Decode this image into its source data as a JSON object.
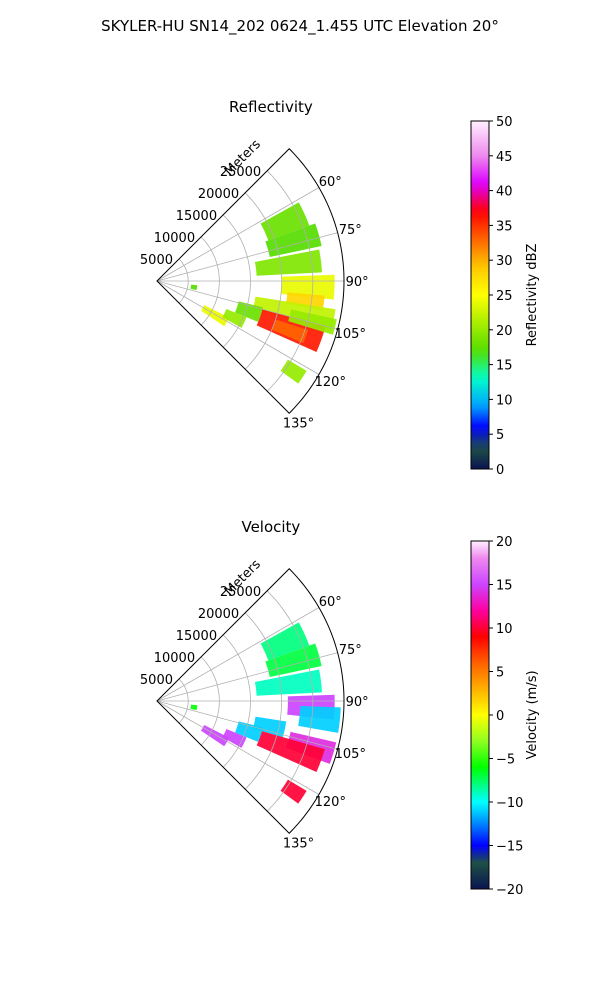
{
  "page_title": "SKYLER-HU  SN14_202  0624_1.455 UTC Elevation 20°",
  "colors": {
    "grid": "#b0b0b0",
    "frame": "#000000"
  },
  "chart_data": [
    {
      "type": "heatmap",
      "subtype": "polar-sector",
      "title": "Reflectivity",
      "range_label": "Meters",
      "r_max": 30000,
      "r_ticks": [
        5000,
        10000,
        15000,
        20000,
        25000
      ],
      "r_tick_labels": [
        "5000",
        "10000",
        "15000",
        "20000",
        "25000"
      ],
      "azimuth_range": [
        45,
        135
      ],
      "azimuth_ticks": [
        60,
        75,
        90,
        105,
        120,
        135
      ],
      "azimuth_tick_labels": [
        "60°",
        "75°",
        "90°",
        "105°",
        "120°",
        "135°"
      ],
      "grid": true,
      "colorbar": {
        "label": "Reflectivity dBZ",
        "vmin": 0,
        "vmax": 50,
        "ticks": [
          0,
          5,
          10,
          15,
          20,
          25,
          30,
          35,
          40,
          45,
          50
        ],
        "tick_labels": [
          "0",
          "5",
          "10",
          "15",
          "20",
          "25",
          "30",
          "35",
          "40",
          "45",
          "50"
        ],
        "stops": [
          [
            0,
            "#0a1450"
          ],
          [
            3,
            "#1e5046"
          ],
          [
            6,
            "#0000ff"
          ],
          [
            9,
            "#00a0ff"
          ],
          [
            13,
            "#00ffcc"
          ],
          [
            17,
            "#55dd00"
          ],
          [
            21,
            "#aaee00"
          ],
          [
            25,
            "#ffff00"
          ],
          [
            29,
            "#ffc800"
          ],
          [
            33,
            "#ff6400"
          ],
          [
            37,
            "#ff0000"
          ],
          [
            41,
            "#dd00ff"
          ],
          [
            45,
            "#ee88ee"
          ],
          [
            50,
            "#fff0ff"
          ]
        ]
      },
      "echo_regions": [
        {
          "az": [
            61,
            70
          ],
          "r": [
            19000,
            26000
          ],
          "value": 18
        },
        {
          "az": [
            70,
            78
          ],
          "r": [
            18500,
            27000
          ],
          "value": 17
        },
        {
          "az": [
            79,
            87
          ],
          "r": [
            16000,
            26500
          ],
          "value": 19
        },
        {
          "az": [
            88,
            96
          ],
          "r": [
            20000,
            28500
          ],
          "value": 24
        },
        {
          "az": [
            95,
            100
          ],
          "r": [
            21000,
            27000
          ],
          "value": 28
        },
        {
          "az": [
            99,
            106
          ],
          "r": [
            16000,
            29000
          ],
          "value": 22
        },
        {
          "az": [
            105,
            114
          ],
          "r": [
            17500,
            28000
          ],
          "value": 36
        },
        {
          "az": [
            108,
            113
          ],
          "r": [
            20000,
            25500
          ],
          "value": 33
        },
        {
          "az": [
            102,
            107
          ],
          "r": [
            22000,
            29500
          ],
          "value": 20
        },
        {
          "az": [
            117,
            124
          ],
          "r": [
            8500,
            13000
          ],
          "value": 24
        },
        {
          "az": [
            112,
            119
          ],
          "r": [
            12000,
            15500
          ],
          "value": 20
        },
        {
          "az": [
            104,
            112
          ],
          "r": [
            13500,
            17500
          ],
          "value": 18
        },
        {
          "az": [
            121,
            126
          ],
          "r": [
            24500,
            28000
          ],
          "value": 20
        },
        {
          "az": [
            96,
            103
          ],
          "r": [
            5500,
            6500
          ],
          "value": 17
        }
      ]
    },
    {
      "type": "heatmap",
      "subtype": "polar-sector",
      "title": "Velocity",
      "range_label": "Meters",
      "r_max": 30000,
      "r_ticks": [
        5000,
        10000,
        15000,
        20000,
        25000
      ],
      "r_tick_labels": [
        "5000",
        "10000",
        "15000",
        "20000",
        "25000"
      ],
      "azimuth_range": [
        45,
        135
      ],
      "azimuth_ticks": [
        60,
        75,
        90,
        105,
        120,
        135
      ],
      "azimuth_tick_labels": [
        "60°",
        "75°",
        "90°",
        "105°",
        "120°",
        "135°"
      ],
      "grid": true,
      "colorbar": {
        "label": "Velocity (m/s)",
        "vmin": -20,
        "vmax": 20,
        "ticks": [
          -20,
          -15,
          -10,
          -5,
          0,
          5,
          10,
          15,
          20
        ],
        "tick_labels": [
          "−20",
          "−15",
          "−10",
          "−5",
          "0",
          "5",
          "10",
          "15",
          "20"
        ],
        "stops": [
          [
            -20,
            "#0a1450"
          ],
          [
            -17,
            "#1e5046"
          ],
          [
            -15,
            "#0000ff"
          ],
          [
            -12,
            "#00a0ff"
          ],
          [
            -10,
            "#00ffff"
          ],
          [
            -8,
            "#00ff80"
          ],
          [
            -6,
            "#00ff00"
          ],
          [
            -3,
            "#90ff20"
          ],
          [
            0,
            "#ffff00"
          ],
          [
            3,
            "#ffb000"
          ],
          [
            6,
            "#ff6000"
          ],
          [
            9,
            "#ff0000"
          ],
          [
            12,
            "#ff00a0"
          ],
          [
            15,
            "#cc44ff"
          ],
          [
            18,
            "#ee88ee"
          ],
          [
            20,
            "#fff0ff"
          ]
        ]
      },
      "echo_regions": [
        {
          "az": [
            61,
            70
          ],
          "r": [
            19000,
            26000
          ],
          "value": -8
        },
        {
          "az": [
            70,
            78
          ],
          "r": [
            18500,
            27000
          ],
          "value": -7
        },
        {
          "az": [
            79,
            87
          ],
          "r": [
            16000,
            26500
          ],
          "value": -9
        },
        {
          "az": [
            88,
            96
          ],
          "r": [
            21000,
            28500
          ],
          "value": 15
        },
        {
          "az": [
            92,
            100
          ],
          "r": [
            23000,
            29500
          ],
          "value": -11
        },
        {
          "az": [
            99,
            106
          ],
          "r": [
            16000,
            21000
          ],
          "value": -11
        },
        {
          "az": [
            103,
            110
          ],
          "r": [
            22000,
            29500
          ],
          "value": 14
        },
        {
          "az": [
            106,
            114
          ],
          "r": [
            17500,
            28000
          ],
          "value": 10
        },
        {
          "az": [
            117,
            124
          ],
          "r": [
            8500,
            13000
          ],
          "value": 15
        },
        {
          "az": [
            112,
            119
          ],
          "r": [
            12000,
            15500
          ],
          "value": 15
        },
        {
          "az": [
            104,
            112
          ],
          "r": [
            13500,
            17500
          ],
          "value": -11
        },
        {
          "az": [
            121,
            126
          ],
          "r": [
            24500,
            28000
          ],
          "value": 10
        },
        {
          "az": [
            96,
            103
          ],
          "r": [
            5500,
            6500
          ],
          "value": -6
        }
      ]
    }
  ]
}
